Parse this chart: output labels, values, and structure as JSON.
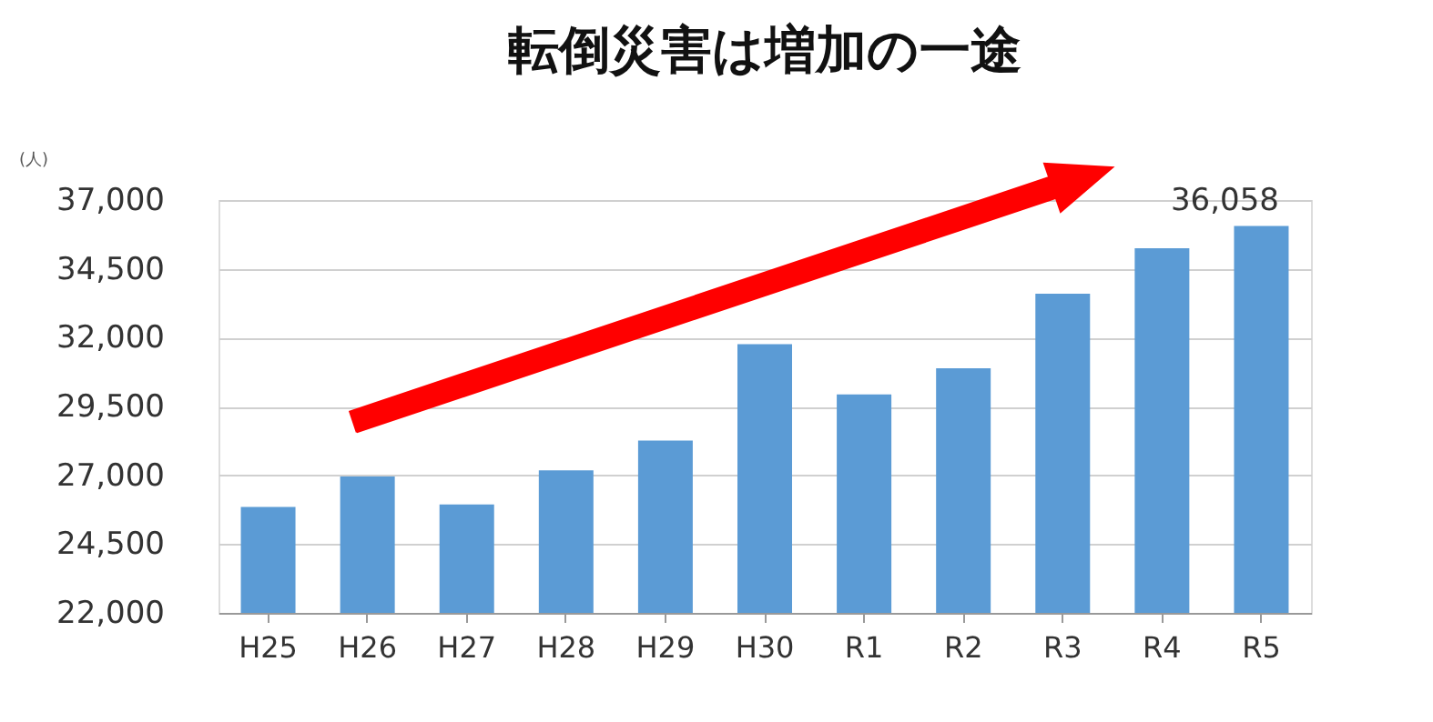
{
  "chart_data": {
    "type": "bar",
    "title": "転倒災害は増加の一途",
    "ylabel": "(人)",
    "categories": [
      "H25",
      "H26",
      "H27",
      "H28",
      "H29",
      "H30",
      "R1",
      "R2",
      "R3",
      "R4",
      "R5"
    ],
    "values": [
      25850,
      26960,
      25940,
      27180,
      28260,
      31760,
      29940,
      30890,
      33600,
      35250,
      36058
    ],
    "value_labels": [
      null,
      null,
      null,
      null,
      null,
      null,
      null,
      null,
      null,
      null,
      "36,058"
    ],
    "color": "#5b9bd5",
    "ylim": [
      22000,
      37000
    ],
    "yticks": [
      {
        "value": 22000,
        "label": "22,000"
      },
      {
        "value": 24500,
        "label": "24,500"
      },
      {
        "value": 27000,
        "label": "27,000"
      },
      {
        "value": 29500,
        "label": "29,500"
      },
      {
        "value": 32000,
        "label": "32,000"
      },
      {
        "value": 34500,
        "label": "34,500"
      },
      {
        "value": 37000,
        "label": "37,000"
      }
    ],
    "grid": "y"
  }
}
